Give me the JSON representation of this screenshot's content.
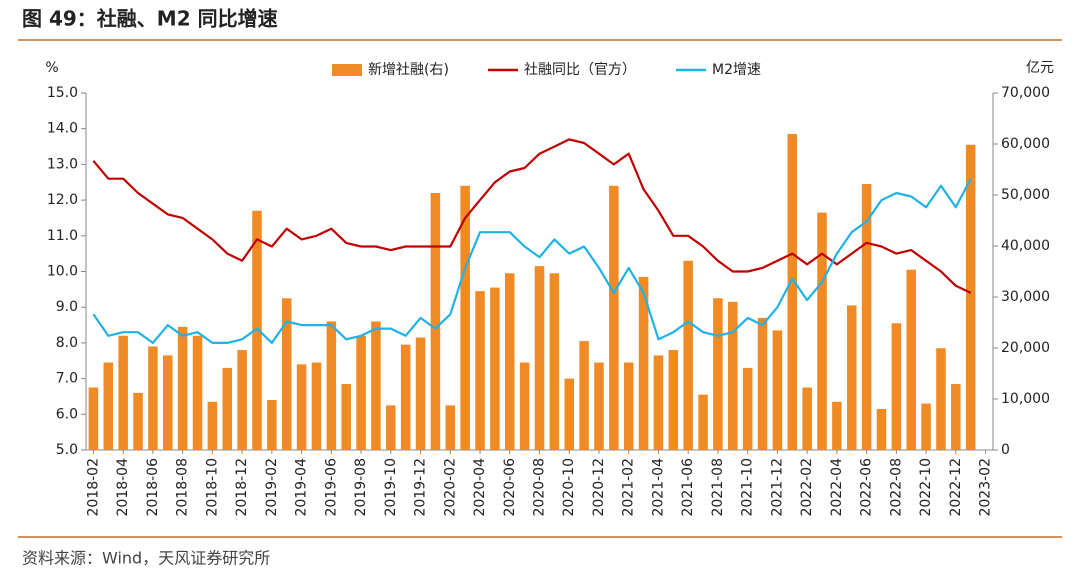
{
  "chart_data": {
    "type": "bar",
    "title": "图 49：社融、M2 同比增速",
    "source": "资料来源：Wind，天风证券研究所",
    "ylabel": "%",
    "y2label": "亿元",
    "categories": [
      "2018-02",
      null,
      "2018-04",
      null,
      "2018-06",
      null,
      "2018-08",
      null,
      "2018-10",
      null,
      "2018-12",
      null,
      "2019-02",
      null,
      "2019-04",
      null,
      "2019-06",
      null,
      "2019-08",
      null,
      "2019-10",
      null,
      "2019-12",
      null,
      "2020-02",
      null,
      "2020-04",
      null,
      "2020-06",
      null,
      "2020-08",
      null,
      "2020-10",
      null,
      "2020-12",
      null,
      "2021-02",
      null,
      "2021-04",
      null,
      "2021-06",
      null,
      "2021-08",
      null,
      "2021-10",
      null,
      "2021-12",
      null,
      "2022-02",
      null,
      "2022-04",
      null,
      "2022-06",
      null,
      "2022-08",
      null,
      "2022-10",
      null,
      "2022-12",
      null,
      "2023-02"
    ],
    "series": [
      {
        "name": "新增社融(右)",
        "type": "bar",
        "axis": "y2",
        "color": "#f08a24",
        "values": [
          12250,
          17150,
          22400,
          11200,
          20300,
          18550,
          24150,
          22400,
          9450,
          16100,
          19600,
          46900,
          9800,
          29750,
          16800,
          17150,
          25200,
          12950,
          22400,
          25200,
          8750,
          20650,
          22050,
          50400,
          8750,
          51800,
          31150,
          31850,
          34650,
          17150,
          36050,
          34650,
          14000,
          21350,
          17150,
          51800,
          17150,
          33950,
          18550,
          19600,
          37100,
          10850,
          29750,
          29050,
          16100,
          25900,
          23450,
          61950,
          12250,
          46550,
          9450,
          28350,
          52150,
          8050,
          24850,
          35350,
          9100,
          19950,
          12950,
          59850,
          null
        ]
      },
      {
        "name": "社融同比（官方）",
        "type": "line",
        "color": "#c00000",
        "values": [
          13.1,
          12.6,
          12.6,
          12.2,
          11.9,
          11.6,
          11.5,
          11.2,
          10.9,
          10.5,
          10.3,
          10.9,
          10.7,
          11.2,
          10.9,
          11.0,
          11.2,
          10.8,
          10.7,
          10.7,
          10.6,
          10.7,
          10.7,
          10.7,
          10.7,
          11.5,
          12.0,
          12.5,
          12.8,
          12.9,
          13.3,
          13.5,
          13.7,
          13.6,
          13.3,
          13.0,
          13.3,
          12.3,
          11.7,
          11.0,
          11.0,
          10.7,
          10.3,
          10.0,
          10.0,
          10.1,
          10.3,
          10.5,
          10.2,
          10.5,
          10.2,
          10.5,
          10.8,
          10.7,
          10.5,
          10.6,
          10.3,
          10.0,
          9.6,
          9.4,
          null
        ]
      },
      {
        "name": "M2增速",
        "type": "line",
        "color": "#1fb2e8",
        "values": [
          8.8,
          8.2,
          8.3,
          8.3,
          8.0,
          8.5,
          8.2,
          8.3,
          8.0,
          8.0,
          8.1,
          8.4,
          8.0,
          8.6,
          8.5,
          8.5,
          8.5,
          8.1,
          8.2,
          8.4,
          8.4,
          8.2,
          8.7,
          8.4,
          8.8,
          10.1,
          11.1,
          11.1,
          11.1,
          10.7,
          10.4,
          10.9,
          10.5,
          10.7,
          10.1,
          9.4,
          10.1,
          9.4,
          8.1,
          8.3,
          8.6,
          8.3,
          8.2,
          8.3,
          8.7,
          8.5,
          9.0,
          9.8,
          9.2,
          9.7,
          10.5,
          11.1,
          11.4,
          12.0,
          12.2,
          12.1,
          11.8,
          12.4,
          11.8,
          12.6,
          null
        ]
      }
    ],
    "ylim": [
      5,
      15
    ],
    "yticks": [
      {
        "value": 5,
        "label": "5.0"
      },
      {
        "value": 6,
        "label": "6.0"
      },
      {
        "value": 7,
        "label": "7.0"
      },
      {
        "value": 8,
        "label": "8.0"
      },
      {
        "value": 9,
        "label": "9.0"
      },
      {
        "value": 10,
        "label": "10.0"
      },
      {
        "value": 11,
        "label": "11.0"
      },
      {
        "value": 12,
        "label": "12.0"
      },
      {
        "value": 13,
        "label": "13.0"
      },
      {
        "value": 14,
        "label": "14.0"
      },
      {
        "value": 15,
        "label": "15.0"
      }
    ],
    "y2lim": [
      0,
      70000
    ],
    "y2ticks": [
      0,
      {
        "value": 10000,
        "label": "10,000"
      },
      {
        "value": 20000,
        "label": "20,000"
      },
      {
        "value": 30000,
        "label": "30,000"
      },
      {
        "value": 40000,
        "label": "40,000"
      },
      {
        "value": 50000,
        "label": "50,000"
      },
      {
        "value": 60000,
        "label": "60,000"
      },
      {
        "value": 70000,
        "label": "70,000"
      }
    ],
    "grid": false
  }
}
